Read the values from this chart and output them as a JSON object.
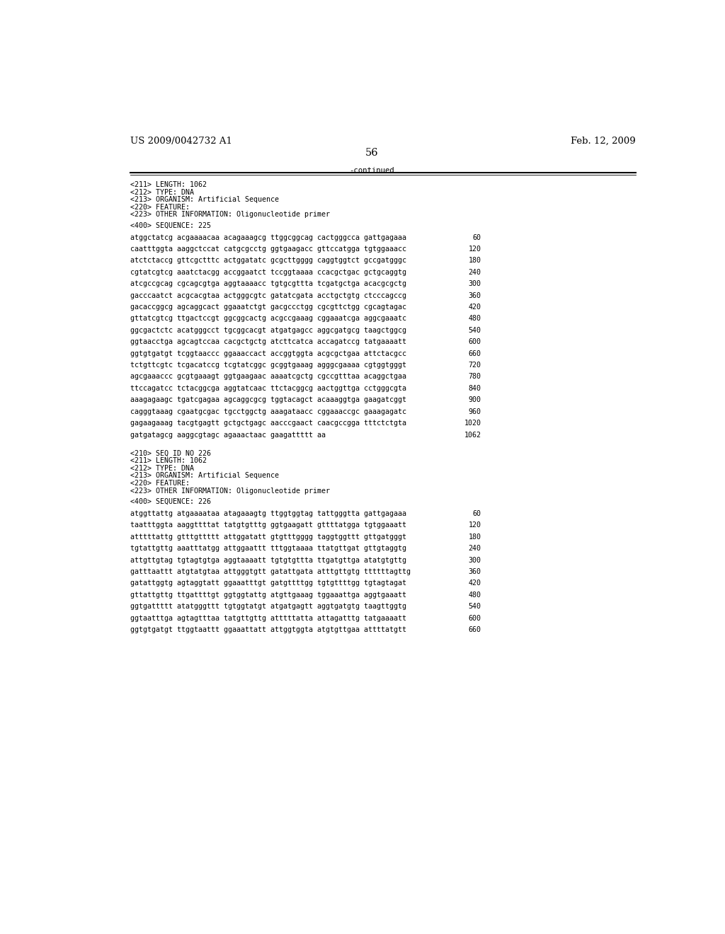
{
  "background_color": "#ffffff",
  "header_left": "US 2009/0042732 A1",
  "header_right": "Feb. 12, 2009",
  "page_number": "56",
  "continued_label": "-continued",
  "monospace_font_size": 7.2,
  "header_font_size": 9.5,
  "section1": {
    "meta": [
      "<211> LENGTH: 1062",
      "<212> TYPE: DNA",
      "<213> ORGANISM: Artificial Sequence",
      "<220> FEATURE:",
      "<223> OTHER INFORMATION: Oligonucleotide primer"
    ],
    "sequence_label": "<400> SEQUENCE: 225",
    "sequences": [
      [
        "atggctatcg acgaaaacaa acagaaagcg ttggcggcag cactgggcca gattgagaaa",
        "60"
      ],
      [
        "caatttggta aaggctccat catgcgcctg ggtgaagacc gttccatgga tgtggaaacc",
        "120"
      ],
      [
        "atctctaccg gttcgctttc actggatatc gcgcttgggg caggtggtct gccgatgggc",
        "180"
      ],
      [
        "cgtatcgtcg aaatctacgg accggaatct tccggtaaaa ccacgctgac gctgcaggtg",
        "240"
      ],
      [
        "atcgccgcag cgcagcgtga aggtaaaacc tgtgcgttta tcgatgctga acacgcgctg",
        "300"
      ],
      [
        "gacccaatct acgcacgtaa actgggcgtc gatatcgata acctgctgtg ctcccagccg",
        "360"
      ],
      [
        "gacaccggcg agcaggcact ggaaatctgt gacgccctgg cgcgttctgg cgcagtagac",
        "420"
      ],
      [
        "gttatcgtcg ttgactccgt ggcggcactg acgccgaaag cggaaatcga aggcgaaatc",
        "480"
      ],
      [
        "ggcgactctc acatgggcct tgcggcacgt atgatgagcc aggcgatgcg taagctggcg",
        "540"
      ],
      [
        "ggtaacctga agcagtccaa cacgctgctg atcttcatca accagatccg tatgaaaatt",
        "600"
      ],
      [
        "ggtgtgatgt tcggtaaccc ggaaaccact accggtggta acgcgctgaa attctacgcc",
        "660"
      ],
      [
        "tctgttcgtc tcgacatccg tcgtatcggc gcggtgaaag agggcgaaaa cgtggtgggt",
        "720"
      ],
      [
        "agcgaaaccc gcgtgaaagt ggtgaagaac aaaatcgctg cgccgtttaa acaggctgaa",
        "780"
      ],
      [
        "ttccagatcc tctacggcga aggtatcaac ttctacggcg aactggttga cctgggcgta",
        "840"
      ],
      [
        "aaagagaagc tgatcgagaa agcaggcgcg tggtacagct acaaaggtga gaagatcggt",
        "900"
      ],
      [
        "cagggtaaag cgaatgcgac tgcctggctg aaagataacc cggaaaccgc gaaagagatc",
        "960"
      ],
      [
        "gagaagaaag tacgtgagtt gctgctgagc aacccgaact caacgccgga tttctctgta",
        "1020"
      ],
      [
        "gatgatagcg aaggcgtagc agaaactaac gaagattttt aa",
        "1062"
      ]
    ]
  },
  "section2": {
    "meta": [
      "<210> SEQ ID NO 226",
      "<211> LENGTH: 1062",
      "<212> TYPE: DNA",
      "<213> ORGANISM: Artificial Sequence",
      "<220> FEATURE:",
      "<223> OTHER INFORMATION: Oligonucleotide primer"
    ],
    "sequence_label": "<400> SEQUENCE: 226",
    "sequences": [
      [
        "atggttattg atgaaaataa atagaaagtg ttggtggtag tattgggtta gattgagaaa",
        "60"
      ],
      [
        "taatttggta aaggttttat tatgtgtttg ggtgaagatt gttttatgga tgtggaaatt",
        "120"
      ],
      [
        "atttttattg gtttgttttt attggatatt gtgtttgggg taggtggttt gttgatgggt",
        "180"
      ],
      [
        "tgtattgttg aaatttatgg attggaattt tttggtaaaa ttatgttgat gttgtaggtg",
        "240"
      ],
      [
        "attgttgtag tgtagtgtga aggtaaaatt tgtgtgttta ttgatgttga atatgtgttg",
        "300"
      ],
      [
        "gatttaattt atgtatgtaa attgggtgtt gatattgata atttgttgtg ttttttagttg",
        "360"
      ],
      [
        "gatattggtg agtaggtatt ggaaatttgt gatgttttgg tgtgttttgg tgtagtagat",
        "420"
      ],
      [
        "gttattgttg ttgattttgt ggtggtattg atgttgaaag tggaaattga aggtgaaatt",
        "480"
      ],
      [
        "ggtgattttt atatgggttt tgtggtatgt atgatgagtt aggtgatgtg taagttggtg",
        "540"
      ],
      [
        "ggtaatttga agtagtttaa tatgttgttg atttttatta attagatttg tatgaaaatt",
        "600"
      ],
      [
        "ggtgtgatgt ttggtaattt ggaaattatt attggtggta atgtgttgaa attttatgtt",
        "660"
      ]
    ]
  }
}
